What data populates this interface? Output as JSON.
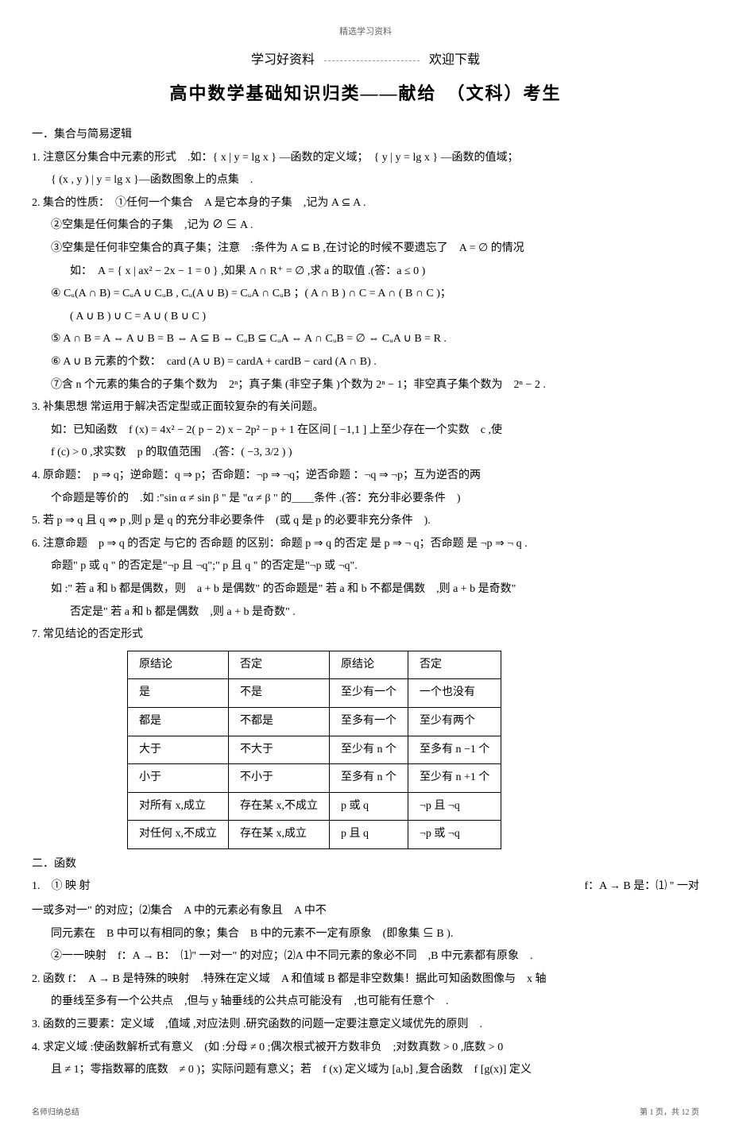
{
  "top_note": "精选学习资料",
  "header_left": "学习好资料",
  "header_right": "欢迎下载",
  "title": "高中数学基础知识归类——献给　（文科）考生",
  "s1_head": "一．集合与简易逻辑",
  "s1_1": "1. 注意区分集合中元素的形式　.如：{ x | y = lg x } —函数的定义域；　{ y | y = lg x } —函数的值域；",
  "s1_1b": "{ (x , y ) | y = lg x }—函数图象上的点集　.",
  "s1_2": "2. 集合的性质：　①任何一个集合　A 是它本身的子集　,记为 A ⊆ A .",
  "s1_2b": "②空集是任何集合的子集　,记为 ∅ ⊆ A .",
  "s1_2c": "③空集是任何非空集合的真子集；注意　:条件为 A ⊆ B ,在讨论的时候不要遗忘了　A = ∅ 的情况",
  "s1_2c2": "如：　A = { x | ax² − 2x − 1 = 0 } ,如果 A ∩ R⁺ = ∅ ,求 a 的取值 .(答：a ≤ 0 )",
  "s1_2d": "④ Cᵤ(A ∩ B) = CᵤA ∪ CᵤB , Cᵤ(A ∪ B) = CᵤA ∩ CᵤB ；( A ∩ B ) ∩ C = A ∩ ( B ∩ C )；",
  "s1_2d2": "( A ∪ B ) ∪ C = A ∪ ( B ∪ C )",
  "s1_2e": "⑤ A ∩ B = A ⇔ A ∪ B = B ⇔ A ⊆ B ⇔ CᵤB ⊆ CᵤA ⇔ A ∩ CᵤB = ∅ ⇔ CᵤA ∪ B = R .",
  "s1_2f": "⑥ A ∪ B 元素的个数：　card (A ∪ B) = cardA + cardB − card (A ∩ B) .",
  "s1_2g": "⑦含 n 个元素的集合的子集个数为　2ⁿ；真子集 (非空子集 )个数为 2ⁿ − 1；非空真子集个数为　2ⁿ − 2 .",
  "s1_3": "3. 补集思想 常运用于解决否定型或正面较复杂的有关问题。",
  "s1_3b": "如：已知函数　f (x) = 4x² − 2( p − 2) x − 2p² − p + 1 在区间 [ −1,1 ] 上至少存在一个实数　c ,使",
  "s1_3c": "f (c) > 0 ,求实数　p 的取值范围　.(答：( −3, 3/2 ) )",
  "s1_4": "4. 原命题：　p ⇒ q；逆命题：q ⇒ p；否命题：¬p ⇒ ¬q；逆否命题 ：¬q ⇒ ¬p；互为逆否的两",
  "s1_4b": "个命题是等价的　.如 :\"sin α ≠ sin β \" 是 \"α ≠ β \" 的____条件 .(答：充分非必要条件　)",
  "s1_5": "5. 若 p ⇒ q 且 q ⇏ p ,则 p 是 q 的充分非必要条件　(或 q 是 p 的必要非充分条件　).",
  "s1_6": "6. 注意命题　p ⇒ q 的否定 与它的 否命题 的区别：命题 p ⇒ q 的否定 是 p ⇒ ¬ q；否命题 是 ¬p ⇒ ¬ q .",
  "s1_6b": "命题\" p 或 q \" 的否定是\"¬p 且 ¬q\";\" p 且 q \" 的否定是\"¬p 或 ¬q\".",
  "s1_6c": "如 :\" 若 a 和 b 都是偶数，则　a + b 是偶数\" 的否命题是\" 若 a 和 b 不都是偶数　,则 a + b 是奇数\"",
  "s1_6d": "否定是\" 若 a 和 b 都是偶数　,则 a + b 是奇数\" .",
  "s1_7": "7. 常见结论的否定形式",
  "table": {
    "rows": [
      [
        "原结论",
        "否定",
        "原结论",
        "否定"
      ],
      [
        "是",
        "不是",
        "至少有一个",
        "一个也没有"
      ],
      [
        "都是",
        "不都是",
        "至多有一个",
        "至少有两个"
      ],
      [
        "大于",
        "不大于",
        "至少有 n 个",
        "至多有 n −1 个"
      ],
      [
        "小于",
        "不小于",
        "至多有 n 个",
        "至少有 n +1 个"
      ],
      [
        "对所有 x,成立",
        "存在某 x,不成立",
        "p 或 q",
        "¬p 且 ¬q"
      ],
      [
        "对任何 x,不成立",
        "存在某 x,成立",
        "p 且 q",
        "¬p 或 ¬q"
      ]
    ]
  },
  "s2_head": "二．函数",
  "s2_1a": "1.　① 映 射",
  "s2_1a_right": "f：A → B 是：⑴ \" 一对",
  "s2_1b": "一或多对一\" 的对应；⑵集合　A 中的元素必有象且　A 中不",
  "s2_1c": "同元素在　B 中可以有相同的象；集合　B 中的元素不一定有原象　(即象集 ⊆ B ).",
  "s2_1d": "②一一映射　f：A → B：　⑴\" 一对一\" 的对应；⑵A 中不同元素的象必不同　,B 中元素都有原象　.",
  "s2_2": "2. 函数 f：　A → B 是特殊的映射　.特殊在定义域　A 和值域 B 都是非空数集！据此可知函数图像与　x 轴",
  "s2_2b": "的垂线至多有一个公共点　,但与 y 轴垂线的公共点可能没有　,也可能有任意个　.",
  "s2_3": "3. 函数的三要素：定义域　,值域 ,对应法则 .研究函数的问题一定要注意定义域优先的原则　.",
  "s2_4": "4. 求定义域 :使函数解析式有意义　(如 :分母 ≠ 0 ;偶次根式被开方数非负　;对数真数 > 0 ,底数 > 0",
  "s2_4b": "且 ≠ 1；零指数幂的底数　≠ 0 )；实际问题有意义；若　f (x) 定义域为 [a,b] ,复合函数　f [g(x)] 定义",
  "footer_left": "名师归纳总结",
  "footer_right": "第 1 页，共 12 页"
}
